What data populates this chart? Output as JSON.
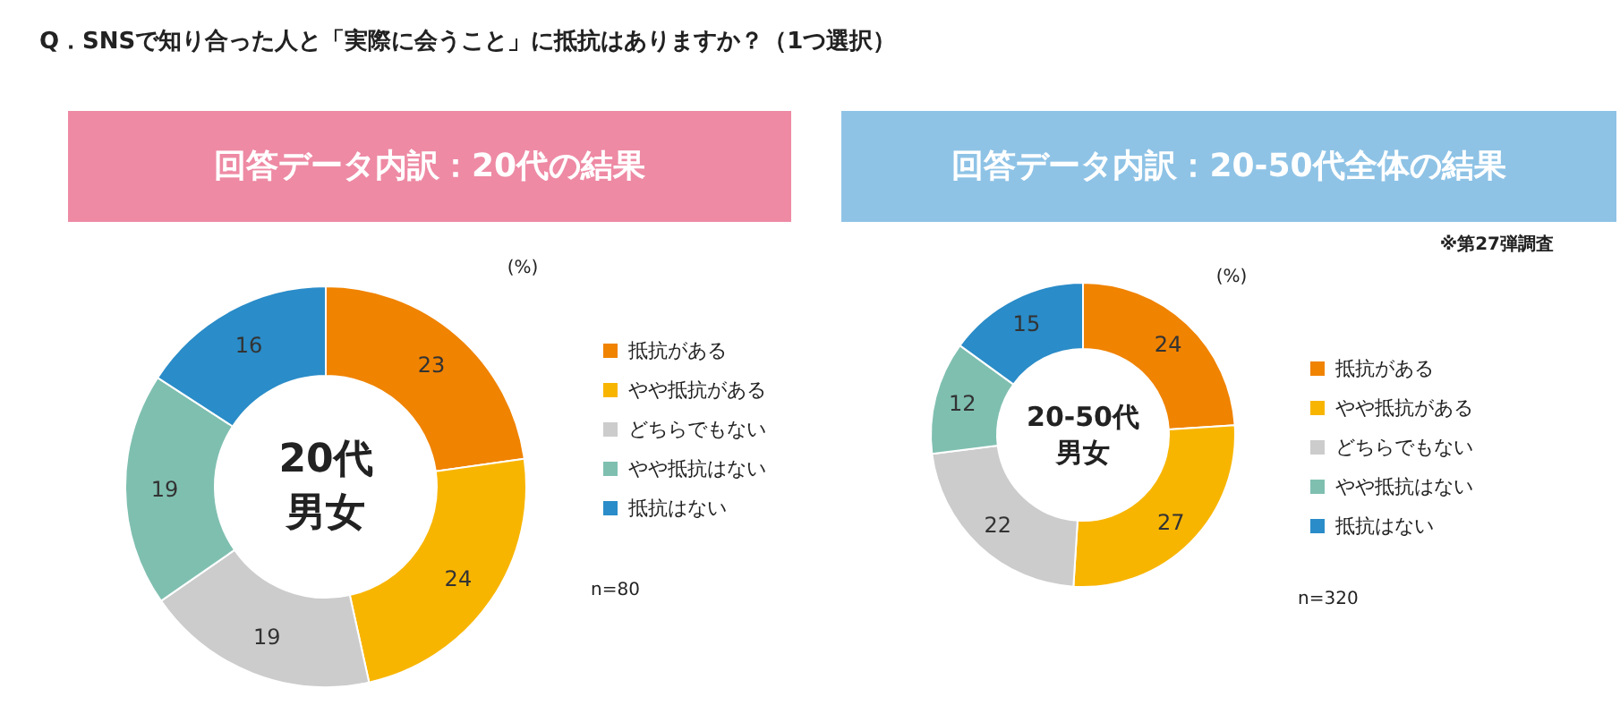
{
  "chart_data": [
    {
      "type": "donut",
      "title": "回答データ内訳：20代の結果",
      "categories": [
        "抵抗がある",
        "やや抵抗がある",
        "どちらでもない",
        "やや抵抗はない",
        "抵抗はない"
      ],
      "values": [
        23,
        24,
        19,
        19,
        16
      ],
      "colors": [
        "#f08300",
        "#f8b500",
        "#cccccc",
        "#7fbfb0",
        "#2a8cc8"
      ],
      "data_labels": true,
      "legend": "right",
      "annotations": [
        "Q．SNSで知り合った人と「実際に会うこと」に抵抗はありますか？（1つ選択）",
        "(%)",
        "20代",
        "男女",
        "n=80"
      ]
    },
    {
      "type": "donut",
      "title": "回答データ内訳：20-50代全体の結果",
      "categories": [
        "抵抗がある",
        "やや抵抗がある",
        "どちらでもない",
        "やや抵抗はない",
        "抵抗はない"
      ],
      "values": [
        24,
        27,
        22,
        12,
        15
      ],
      "colors": [
        "#f08300",
        "#f8b500",
        "#cccccc",
        "#7fbfb0",
        "#2a8cc8"
      ],
      "data_labels": true,
      "legend": "right",
      "annotations": [
        "※第27弾調査",
        "(%)",
        "20-50代",
        "男女",
        "n=320"
      ]
    }
  ]
}
